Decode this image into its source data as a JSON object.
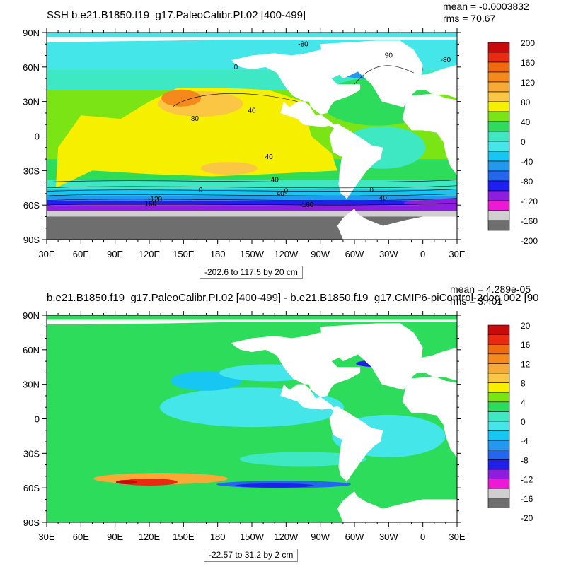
{
  "panels": [
    {
      "title": "SSH b.e21.B1850.f19_g17.PaleoCalibr.PI.02 [400-499]",
      "stats": {
        "mean": "mean = -0.0003832",
        "rms": "rms = 70.67"
      },
      "contour_info": "-202.6 to 117.5 by 20 cm",
      "colorbar_labels": [
        "200",
        "160",
        "120",
        "80",
        "40",
        "0",
        "-40",
        "-80",
        "-120",
        "-160",
        "-200"
      ],
      "contour_labels": [
        "0",
        "-80",
        "90",
        "-80",
        "40",
        "80",
        "40",
        "40",
        "0",
        "0",
        "0",
        "40",
        "40",
        "-120",
        "-160",
        "-160"
      ]
    },
    {
      "title": "b.e21.B1850.f19_g17.PaleoCalibr.PI.02 [400-499] - b.e21.B1850.f19_g17.CMIP6-piControl-2deg.002 [90",
      "stats": {
        "mean": "mean = 4.289e-05",
        "rms": "rms = 3.401"
      },
      "contour_info": "-22.57 to 31.2 by 2 cm",
      "colorbar_labels": [
        "20",
        "16",
        "12",
        "8",
        "4",
        "0",
        "-4",
        "-8",
        "-12",
        "-16",
        "-20"
      ],
      "contour_labels": []
    }
  ],
  "lat_labels": [
    "90N",
    "60N",
    "30N",
    "0",
    "30S",
    "60S",
    "90S"
  ],
  "lon_labels": [
    "30E",
    "60E",
    "90E",
    "120E",
    "150E",
    "180",
    "150W",
    "120W",
    "90W",
    "60W",
    "30W",
    "0",
    "30E"
  ],
  "colors": {
    "ramp": [
      "#6e6e6e",
      "#cfcfcf",
      "#ee19d6",
      "#8d1ee0",
      "#2020ee",
      "#2466ee",
      "#2298ee",
      "#17c6f2",
      "#44e6ea",
      "#3ee8c2",
      "#2ddc5a",
      "#7ae414",
      "#f6f000",
      "#fbc644",
      "#f9aa36",
      "#f5891c",
      "#f06a10",
      "#e82a12",
      "#c80a0a"
    ],
    "land": "#ffffff",
    "contour": "#000000"
  }
}
